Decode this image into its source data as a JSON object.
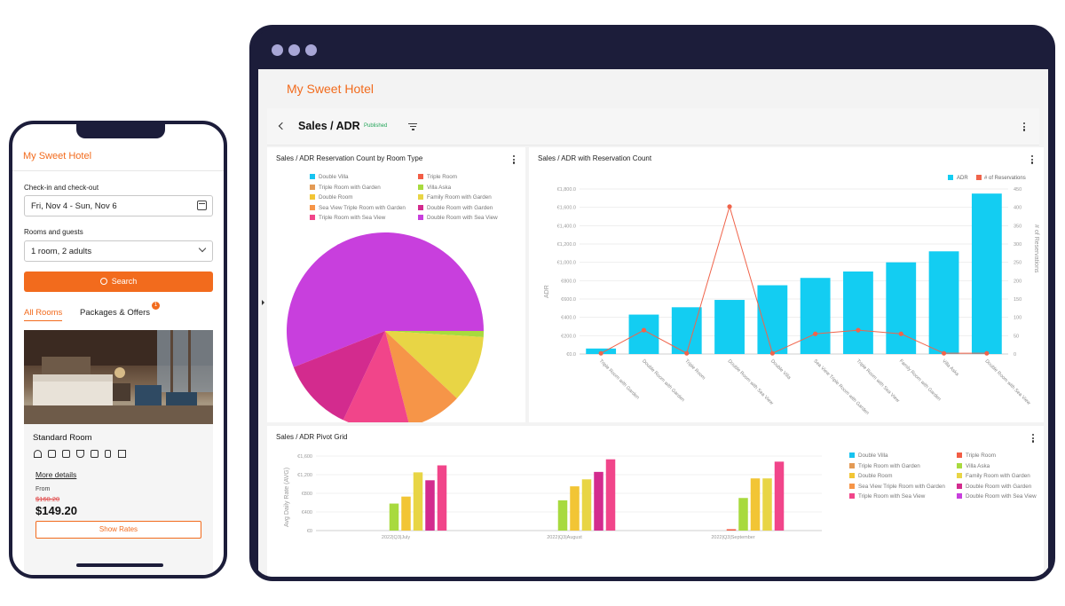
{
  "phone": {
    "brand": "My Sweet Hotel",
    "checkin_label": "Check-in and check-out",
    "checkin_value": "Fri, Nov 4 - Sun, Nov 6",
    "guests_label": "Rooms and guests",
    "guests_value": "1 room, 2 adults",
    "search_label": "Search",
    "tabs": [
      "All Rooms",
      "Packages & Offers"
    ],
    "tab_badge": "1",
    "room_name": "Standard Room",
    "more_details": "More details",
    "from_label": "From",
    "old_price": "$160.20",
    "price": "$149.20",
    "show_rates": "Show Rates",
    "amenity_icons": [
      "wifi-icon",
      "hairdryer-icon",
      "shower-icon",
      "bathtub-icon",
      "safe-icon",
      "restaurant-icon",
      "pool-icon"
    ]
  },
  "dashboard": {
    "brand": "My Sweet Hotel",
    "page_title": "Sales / ADR",
    "status": "Published",
    "colors": {
      "accent": "#f26b1d",
      "bar": "#13cdf2",
      "line": "#f0644b",
      "published": "#25a55a"
    }
  },
  "pie_panel": {
    "title": "Sales / ADR Reservation Count by Room Type",
    "legend": [
      {
        "name": "Double Villa",
        "color": "#17c3f0"
      },
      {
        "name": "Triple Room",
        "color": "#f25d45"
      },
      {
        "name": "Triple Room with Garden",
        "color": "#e39a55"
      },
      {
        "name": "Villa Aska",
        "color": "#a8da3e"
      },
      {
        "name": "Double Room",
        "color": "#f2c535"
      },
      {
        "name": "Family Room with Garden",
        "color": "#e8d545"
      },
      {
        "name": "Sea View Triple Room with Garden",
        "color": "#f69548"
      },
      {
        "name": "Double Room with Garden",
        "color": "#d32b8e"
      },
      {
        "name": "Triple Room with Sea View",
        "color": "#f1458a"
      },
      {
        "name": "Double Room with Sea View",
        "color": "#c83fdd"
      }
    ]
  },
  "combo_panel": {
    "title": "Sales / ADR with Reservation Count",
    "legend": [
      "ADR",
      "# of Reservations"
    ],
    "y_left_label": "ADR",
    "y_right_label": "# of Reservations",
    "y_left_ticks": [
      "€0.0",
      "€200.0",
      "€400.0",
      "€600.0",
      "€800.0",
      "€1,000.0",
      "€1,200.0",
      "€1,400.0",
      "€1,600.0",
      "€1,800.0"
    ],
    "y_right_ticks": [
      "0",
      "50",
      "100",
      "150",
      "200",
      "250",
      "300",
      "350",
      "400",
      "450"
    ]
  },
  "pivot_panel": {
    "title": "Sales / ADR Pivot Grid",
    "y_label": "Avg Daily Rate (AVG)",
    "y_ticks": [
      "€0",
      "€400",
      "€800",
      "€1,200",
      "€1,600"
    ],
    "legend": [
      {
        "name": "Double Villa",
        "color": "#17c3f0"
      },
      {
        "name": "Triple Room",
        "color": "#f25d45"
      },
      {
        "name": "Triple Room with Garden",
        "color": "#e39a55"
      },
      {
        "name": "Villa Aska",
        "color": "#a8da3e"
      },
      {
        "name": "Double Room",
        "color": "#f2c535"
      },
      {
        "name": "Family Room with Garden",
        "color": "#e8d545"
      },
      {
        "name": "Sea View Triple Room with Garden",
        "color": "#f69548"
      },
      {
        "name": "Double Room with Garden",
        "color": "#d32b8e"
      },
      {
        "name": "Triple Room with Sea View",
        "color": "#f1458a"
      },
      {
        "name": "Double Room with Sea View",
        "color": "#c83fdd"
      }
    ]
  },
  "chart_data": [
    {
      "type": "pie",
      "title": "Sales / ADR Reservation Count by Room Type",
      "slices": [
        {
          "name": "Double Room with Sea View",
          "value": 56,
          "color": "#c83fdd"
        },
        {
          "name": "Villa Aska",
          "value": 1,
          "color": "#a8da3e"
        },
        {
          "name": "Family Room with Garden",
          "value": 11,
          "color": "#e8d545"
        },
        {
          "name": "Sea View Triple Room with Garden",
          "value": 9,
          "color": "#f69548"
        },
        {
          "name": "Triple Room with Sea View",
          "value": 11,
          "color": "#f1458a"
        },
        {
          "name": "Double Room with Garden",
          "value": 12,
          "color": "#d32b8e"
        }
      ]
    },
    {
      "type": "bar",
      "title": "Sales / ADR with Reservation Count",
      "categories": [
        "Triple Room with Garden",
        "Double Room with Garden",
        "Triple Room",
        "Double Room with Sea View",
        "Double Villa",
        "Sea View Triple Room with Garden",
        "Triple Room with Sea View",
        "Family Room with Garden",
        "Villa Aska",
        "Double Room with Sea View"
      ],
      "series": [
        {
          "name": "ADR",
          "kind": "bar",
          "axis": "left",
          "values": [
            60,
            430,
            510,
            590,
            750,
            830,
            900,
            1000,
            1120,
            1750
          ],
          "color": "#13cdf2"
        },
        {
          "name": "# of Reservations",
          "kind": "line",
          "axis": "right",
          "values": [
            2,
            65,
            2,
            402,
            2,
            55,
            65,
            55,
            2,
            2
          ],
          "color": "#f0644b"
        }
      ],
      "ylim_left": [
        0,
        1800
      ],
      "ylim_right": [
        0,
        450
      ],
      "xlabel": "",
      "ylabel": "ADR",
      "ylabel_right": "# of Reservations",
      "legend_position": "top-right",
      "grid": true
    },
    {
      "type": "bar",
      "title": "Sales / ADR Pivot Grid",
      "categories": [
        "2022|Q3|July",
        "2022|Q3|August",
        "2022|Q3|September"
      ],
      "series": [
        {
          "name": "Triple Room",
          "values": [
            0,
            0,
            30
          ],
          "color": "#f25d45"
        },
        {
          "name": "Villa Aska",
          "values": [
            580,
            650,
            700
          ],
          "color": "#a8da3e"
        },
        {
          "name": "Double Room",
          "values": [
            730,
            950,
            1120
          ],
          "color": "#f2c535"
        },
        {
          "name": "Family Room with Garden",
          "values": [
            1250,
            1100,
            1120
          ],
          "color": "#e8d545"
        },
        {
          "name": "Double Room with Garden",
          "values": [
            1080,
            1260,
            0
          ],
          "color": "#d32b8e"
        },
        {
          "name": "Triple Room with Sea View",
          "values": [
            1400,
            1530,
            1480
          ],
          "color": "#f1458a"
        }
      ],
      "ylabel": "Avg Daily Rate (AVG)",
      "ylim": [
        0,
        1600
      ],
      "legend_position": "right",
      "grid": true
    }
  ]
}
